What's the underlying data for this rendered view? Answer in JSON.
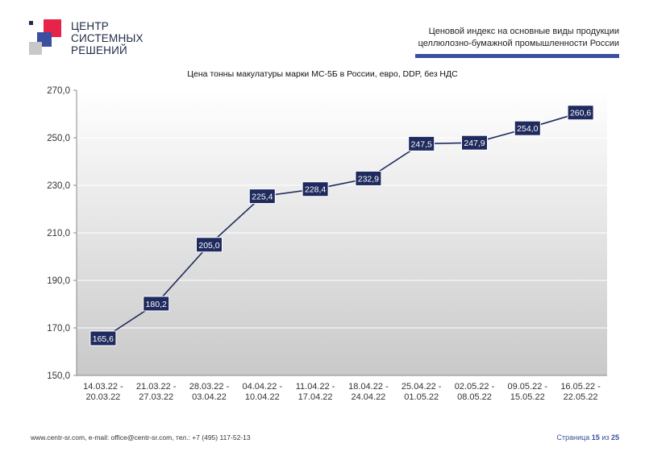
{
  "header": {
    "logo_lines": [
      "ЦЕНТР",
      "СИСТЕМНЫХ",
      "РЕШЕНИЙ"
    ],
    "title_line1": "Ценовой индекс на основные виды продукции",
    "title_line2": "целлюлозно-бумажной промышленности России",
    "accent_color": "#3b4fa0"
  },
  "chart_data": {
    "type": "line",
    "title": "Цена тонны макулатуры марки МС-5Б в России, евро, DDP, без НДС",
    "categories": [
      [
        "14.03.22 -",
        "20.03.22"
      ],
      [
        "21.03.22 -",
        "27.03.22"
      ],
      [
        "28.03.22 -",
        "03.04.22"
      ],
      [
        "04.04.22 -",
        "10.04.22"
      ],
      [
        "11.04.22 -",
        "17.04.22"
      ],
      [
        "18.04.22 -",
        "24.04.22"
      ],
      [
        "25.04.22 -",
        "01.05.22"
      ],
      [
        "02.05.22 -",
        "08.05.22"
      ],
      [
        "09.05.22 -",
        "15.05.22"
      ],
      [
        "16.05.22 -",
        "22.05.22"
      ]
    ],
    "values": [
      165.6,
      180.2,
      205.0,
      225.4,
      228.4,
      232.9,
      247.5,
      247.9,
      254.0,
      260.6
    ],
    "value_labels": [
      "165,6",
      "180,2",
      "205,0",
      "225,4",
      "228,4",
      "232,9",
      "247,5",
      "247,9",
      "254,0",
      "260,6"
    ],
    "ylim": [
      150,
      270
    ],
    "yticks": [
      150,
      170,
      190,
      210,
      230,
      250,
      270
    ],
    "ytick_labels": [
      "150,0",
      "170,0",
      "190,0",
      "210,0",
      "230,0",
      "250,0",
      "270,0"
    ],
    "grid": true,
    "line_color": "#1f2a5e",
    "label_bg_color": "#1f2a5e"
  },
  "footer": {
    "contacts": "www.centr-sr.com, e-mail: office@centr-sr.com, тел.: +7 (495) 117-52-13",
    "page_prefix": "Страница",
    "page_current": "15",
    "page_sep": "из",
    "page_total": "25"
  }
}
